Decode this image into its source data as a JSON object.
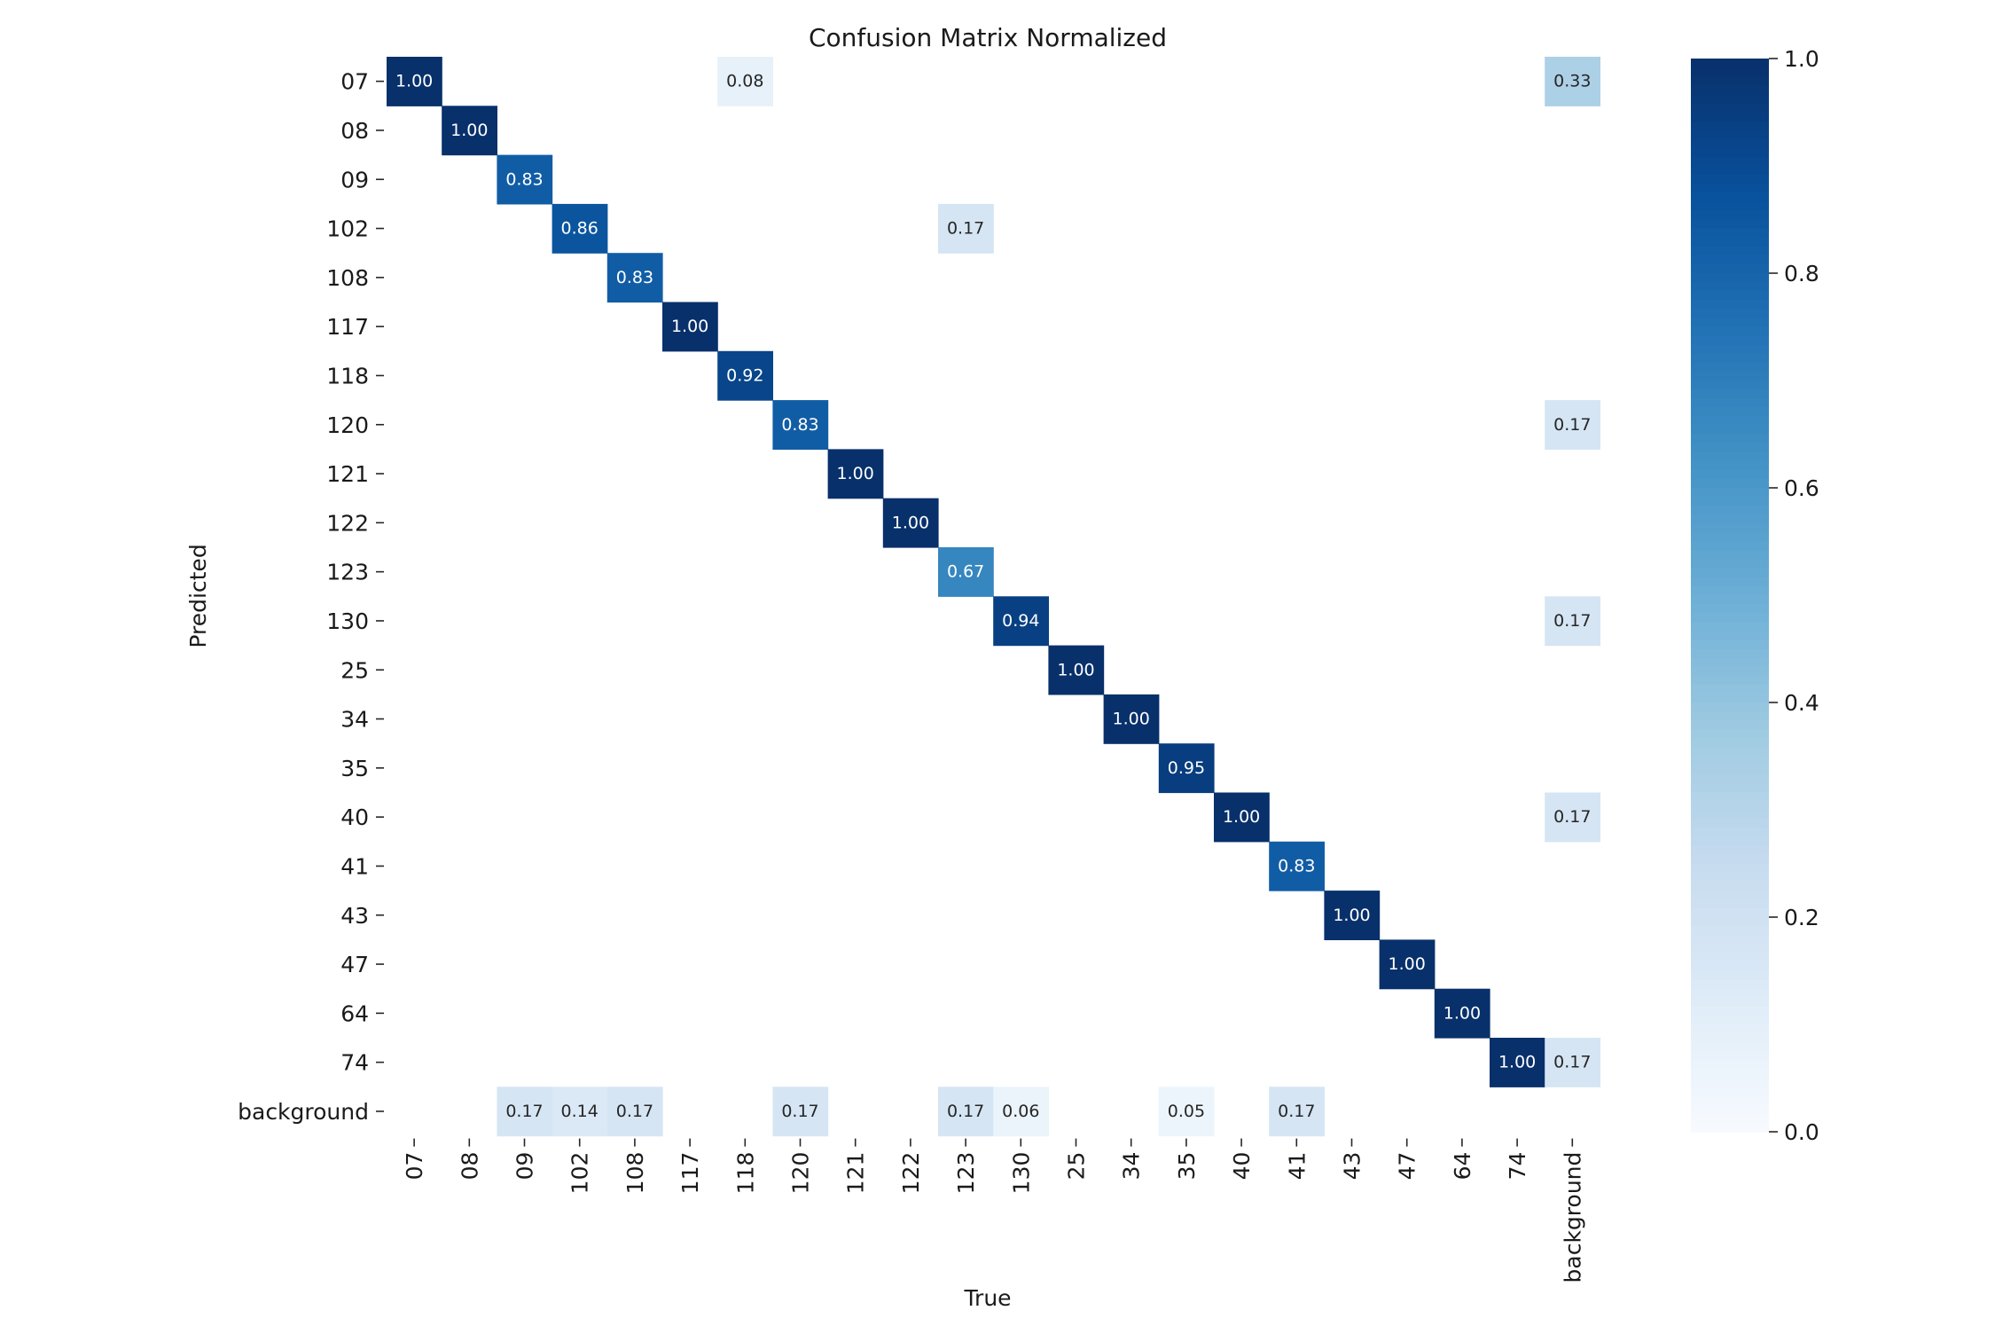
{
  "chart_data": {
    "type": "heatmap",
    "title": "Confusion Matrix Normalized",
    "xlabel": "True",
    "ylabel": "Predicted",
    "x_categories": [
      "07",
      "08",
      "09",
      "102",
      "108",
      "117",
      "118",
      "120",
      "121",
      "122",
      "123",
      "130",
      "25",
      "34",
      "35",
      "40",
      "41",
      "43",
      "47",
      "64",
      "74",
      "background"
    ],
    "y_categories": [
      "07",
      "08",
      "09",
      "102",
      "108",
      "117",
      "118",
      "120",
      "121",
      "122",
      "123",
      "130",
      "25",
      "34",
      "35",
      "40",
      "41",
      "43",
      "47",
      "64",
      "74",
      "background"
    ],
    "cells": [
      {
        "row": "07",
        "col": "07",
        "value": 1.0,
        "label": "1.00"
      },
      {
        "row": "07",
        "col": "118",
        "value": 0.08,
        "label": "0.08"
      },
      {
        "row": "07",
        "col": "background",
        "value": 0.33,
        "label": "0.33"
      },
      {
        "row": "08",
        "col": "08",
        "value": 1.0,
        "label": "1.00"
      },
      {
        "row": "09",
        "col": "09",
        "value": 0.83,
        "label": "0.83"
      },
      {
        "row": "102",
        "col": "102",
        "value": 0.86,
        "label": "0.86"
      },
      {
        "row": "102",
        "col": "123",
        "value": 0.17,
        "label": "0.17"
      },
      {
        "row": "108",
        "col": "108",
        "value": 0.83,
        "label": "0.83"
      },
      {
        "row": "117",
        "col": "117",
        "value": 1.0,
        "label": "1.00"
      },
      {
        "row": "118",
        "col": "118",
        "value": 0.92,
        "label": "0.92"
      },
      {
        "row": "120",
        "col": "120",
        "value": 0.83,
        "label": "0.83"
      },
      {
        "row": "120",
        "col": "background",
        "value": 0.17,
        "label": "0.17"
      },
      {
        "row": "121",
        "col": "121",
        "value": 1.0,
        "label": "1.00"
      },
      {
        "row": "122",
        "col": "122",
        "value": 1.0,
        "label": "1.00"
      },
      {
        "row": "123",
        "col": "123",
        "value": 0.67,
        "label": "0.67"
      },
      {
        "row": "130",
        "col": "130",
        "value": 0.94,
        "label": "0.94"
      },
      {
        "row": "130",
        "col": "background",
        "value": 0.17,
        "label": "0.17"
      },
      {
        "row": "25",
        "col": "25",
        "value": 1.0,
        "label": "1.00"
      },
      {
        "row": "34",
        "col": "34",
        "value": 1.0,
        "label": "1.00"
      },
      {
        "row": "35",
        "col": "35",
        "value": 0.95,
        "label": "0.95"
      },
      {
        "row": "40",
        "col": "40",
        "value": 1.0,
        "label": "1.00"
      },
      {
        "row": "40",
        "col": "background",
        "value": 0.17,
        "label": "0.17"
      },
      {
        "row": "41",
        "col": "41",
        "value": 0.83,
        "label": "0.83"
      },
      {
        "row": "43",
        "col": "43",
        "value": 1.0,
        "label": "1.00"
      },
      {
        "row": "47",
        "col": "47",
        "value": 1.0,
        "label": "1.00"
      },
      {
        "row": "64",
        "col": "64",
        "value": 1.0,
        "label": "1.00"
      },
      {
        "row": "74",
        "col": "74",
        "value": 1.0,
        "label": "1.00"
      },
      {
        "row": "74",
        "col": "background",
        "value": 0.17,
        "label": "0.17"
      },
      {
        "row": "background",
        "col": "09",
        "value": 0.17,
        "label": "0.17"
      },
      {
        "row": "background",
        "col": "102",
        "value": 0.14,
        "label": "0.14"
      },
      {
        "row": "background",
        "col": "108",
        "value": 0.17,
        "label": "0.17"
      },
      {
        "row": "background",
        "col": "120",
        "value": 0.17,
        "label": "0.17"
      },
      {
        "row": "background",
        "col": "123",
        "value": 0.17,
        "label": "0.17"
      },
      {
        "row": "background",
        "col": "130",
        "value": 0.06,
        "label": "0.06"
      },
      {
        "row": "background",
        "col": "35",
        "value": 0.05,
        "label": "0.05"
      },
      {
        "row": "background",
        "col": "41",
        "value": 0.17,
        "label": "0.17"
      }
    ],
    "colorbar": {
      "colormap": "Blues",
      "range": [
        0.0,
        1.0
      ],
      "ticks": [
        0.0,
        0.2,
        0.4,
        0.6,
        0.8,
        1.0
      ],
      "tick_labels": [
        "0.0",
        "0.2",
        "0.4",
        "0.6",
        "0.8",
        "1.0"
      ]
    },
    "colors": {
      "low": "#f7fbff",
      "high": "#08306b",
      "light_text": "#ffffff",
      "dark_text": "#262626"
    }
  }
}
